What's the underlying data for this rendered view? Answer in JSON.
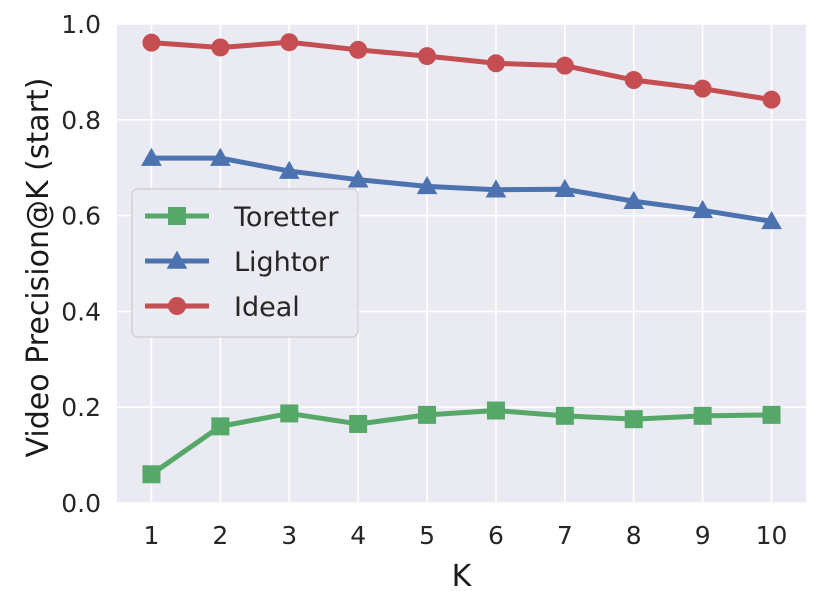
{
  "chart_data": {
    "type": "line",
    "title": "",
    "xlabel": "K",
    "ylabel": "Video Precision@K (start)",
    "x": [
      1,
      2,
      3,
      4,
      5,
      6,
      7,
      8,
      9,
      10
    ],
    "x_tick_labels": [
      "1",
      "2",
      "3",
      "4",
      "5",
      "6",
      "7",
      "8",
      "9",
      "10"
    ],
    "xlim": [
      0.5,
      10.5
    ],
    "ylim": [
      0.0,
      1.0
    ],
    "y_tick_labels": [
      "0.0",
      "0.2",
      "0.4",
      "0.6",
      "0.8",
      "1.0"
    ],
    "y_ticks": [
      0.0,
      0.2,
      0.4,
      0.6,
      0.8,
      1.0
    ],
    "grid": true,
    "background": "#eaeaf2",
    "legend_placement": "center-left",
    "series": [
      {
        "name": "Toretter",
        "marker": "square",
        "color": "#55a868",
        "values": [
          0.06,
          0.16,
          0.187,
          0.165,
          0.184,
          0.193,
          0.182,
          0.175,
          0.182,
          0.184
        ]
      },
      {
        "name": "Lightor",
        "marker": "triangle",
        "color": "#4c72b0",
        "values": [
          0.72,
          0.72,
          0.693,
          0.675,
          0.661,
          0.654,
          0.655,
          0.63,
          0.611,
          0.588
        ]
      },
      {
        "name": "Ideal",
        "marker": "circle",
        "color": "#c44e52",
        "values": [
          0.961,
          0.951,
          0.962,
          0.946,
          0.933,
          0.918,
          0.913,
          0.883,
          0.865,
          0.842
        ]
      }
    ]
  }
}
